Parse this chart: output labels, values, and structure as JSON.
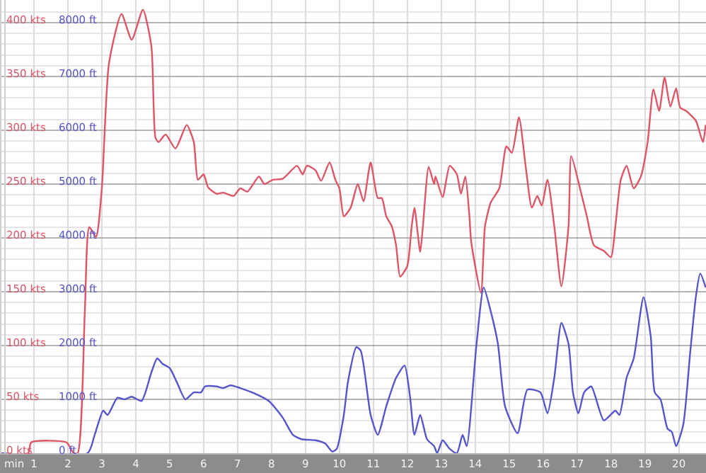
{
  "chart_data": {
    "type": "line",
    "xlabel": "min",
    "grid": true,
    "marker": "none",
    "line_style": "solid",
    "xlim": [
      0,
      20.8
    ],
    "xticks": [
      1,
      2,
      3,
      4,
      5,
      6,
      7,
      8,
      9,
      10,
      11,
      12,
      13,
      14,
      15,
      16,
      17,
      18,
      19,
      20
    ],
    "ylim": [
      0,
      421
    ],
    "yticks": [
      {
        "value": 0,
        "label": "0 kts"
      },
      {
        "value": 50,
        "label": "50 kts"
      },
      {
        "value": 100,
        "label": "100 kts"
      },
      {
        "value": 150,
        "label": "150 kts"
      },
      {
        "value": 200,
        "label": "200 kts"
      },
      {
        "value": 250,
        "label": "250 kts"
      },
      {
        "value": 300,
        "label": "300 kts"
      },
      {
        "value": 350,
        "label": "350 kts"
      },
      {
        "value": 400,
        "label": "400 kts"
      }
    ],
    "y2lim": [
      0,
      8420
    ],
    "y2ticks": [
      {
        "value": 0,
        "label": "0 ft"
      },
      {
        "value": 1000,
        "label": "1000 ft"
      },
      {
        "value": 2000,
        "label": "2000 ft"
      },
      {
        "value": 3000,
        "label": "3000 ft"
      },
      {
        "value": 4000,
        "label": "4000 ft"
      },
      {
        "value": 5000,
        "label": "5000 ft"
      },
      {
        "value": 6000,
        "label": "6000 ft"
      },
      {
        "value": 7000,
        "label": "7000 ft"
      },
      {
        "value": 8000,
        "label": "8000 ft"
      }
    ],
    "series": [
      {
        "color": "#dd5566",
        "x": [
          0,
          0.83,
          0.92,
          1.96,
          2.17,
          2.29,
          2.5,
          2.63,
          2.83,
          3,
          3.21,
          3.58,
          3.88,
          4.21,
          4.46,
          4.58,
          4.67,
          4.88,
          5.17,
          5.5,
          5.71,
          5.83,
          6,
          6.13,
          6.38,
          6.58,
          6.88,
          7.08,
          7.29,
          7.63,
          7.79,
          8.04,
          8.33,
          8.75,
          8.92,
          9.04,
          9.29,
          9.46,
          9.71,
          9.88,
          10,
          10.13,
          10.33,
          10.54,
          10.71,
          10.92,
          11.13,
          11.25,
          11.38,
          11.54,
          11.67,
          11.79,
          12,
          12.13,
          12.21,
          12.38,
          12.46,
          12.63,
          12.79,
          12.83,
          13.04,
          13.25,
          13.46,
          13.58,
          13.71,
          13.83,
          13.88,
          14.17,
          14.29,
          14.46,
          14.71,
          14.92,
          15.08,
          15.29,
          15.5,
          15.67,
          15.83,
          15.96,
          16.13,
          16.33,
          16.54,
          16.75,
          16.83,
          17.08,
          17.29,
          17.5,
          17.79,
          18,
          18.13,
          18.29,
          18.46,
          18.67,
          18.88,
          19.08,
          19.25,
          19.42,
          19.58,
          19.75,
          19.92,
          20.04,
          20.21,
          20.5,
          20.71,
          20.79
        ],
        "values": [
          0,
          0,
          10,
          10,
          0,
          0,
          132,
          210,
          201,
          246,
          362,
          408,
          384,
          412,
          378,
          293,
          289,
          296,
          283,
          305,
          289,
          254,
          259,
          247,
          241,
          242,
          239,
          246,
          243,
          257,
          250,
          254,
          255,
          267,
          259,
          267,
          263,
          253,
          270,
          254,
          246,
          220,
          228,
          250,
          234,
          270,
          237,
          237,
          220,
          211,
          193,
          164,
          174,
          211,
          228,
          187,
          211,
          266,
          250,
          257,
          238,
          267,
          259,
          241,
          257,
          220,
          197,
          149,
          211,
          233,
          246,
          285,
          279,
          312,
          263,
          228,
          239,
          230,
          254,
          211,
          155,
          211,
          276,
          247,
          220,
          193,
          188,
          182,
          211,
          254,
          267,
          246,
          257,
          289,
          338,
          318,
          349,
          322,
          339,
          321,
          318,
          309,
          289,
          305
        ]
      },
      {
        "color": "#5555cc",
        "axis": "y2",
        "x": [
          0,
          2.58,
          2.79,
          3.04,
          3.17,
          3.46,
          3.67,
          3.88,
          4.17,
          4.46,
          4.63,
          4.79,
          5,
          5.21,
          5.46,
          5.71,
          5.92,
          6.04,
          6.38,
          6.58,
          6.79,
          7.08,
          7.5,
          7.92,
          8.33,
          8.63,
          8.88,
          9.29,
          9.58,
          9.79,
          9.92,
          10.13,
          10.25,
          10.5,
          10.63,
          10.92,
          11.13,
          11.38,
          11.67,
          11.92,
          12.08,
          12.21,
          12.38,
          12.58,
          12.79,
          12.88,
          13.04,
          13.25,
          13.46,
          13.63,
          13.75,
          14.04,
          14.25,
          14.46,
          14.67,
          14.88,
          15.25,
          15.54,
          15.92,
          16.13,
          16.33,
          16.54,
          16.75,
          16.88,
          17.04,
          17.21,
          17.42,
          17.79,
          18.13,
          18.25,
          18.46,
          18.67,
          18.96,
          19.17,
          19.29,
          19.46,
          19.67,
          19.79,
          19.92,
          20.13,
          20.33,
          20.5,
          20.63,
          20.79
        ],
        "values": [
          0,
          0,
          340,
          790,
          710,
          1030,
          1000,
          1050,
          970,
          1500,
          1760,
          1660,
          1580,
          1320,
          1000,
          1130,
          1130,
          1240,
          1240,
          1210,
          1260,
          1210,
          1110,
          970,
          660,
          340,
          260,
          240,
          180,
          30,
          80,
          710,
          1320,
          1970,
          1900,
          710,
          340,
          870,
          1400,
          1630,
          1050,
          340,
          710,
          260,
          130,
          0,
          240,
          80,
          0,
          340,
          130,
          2030,
          3080,
          2630,
          2030,
          870,
          370,
          1180,
          1130,
          740,
          1400,
          2420,
          2030,
          1130,
          740,
          1130,
          1240,
          610,
          790,
          710,
          1400,
          1760,
          2900,
          2180,
          1130,
          1000,
          450,
          400,
          130,
          530,
          1840,
          2900,
          3340,
          3080
        ]
      }
    ]
  }
}
